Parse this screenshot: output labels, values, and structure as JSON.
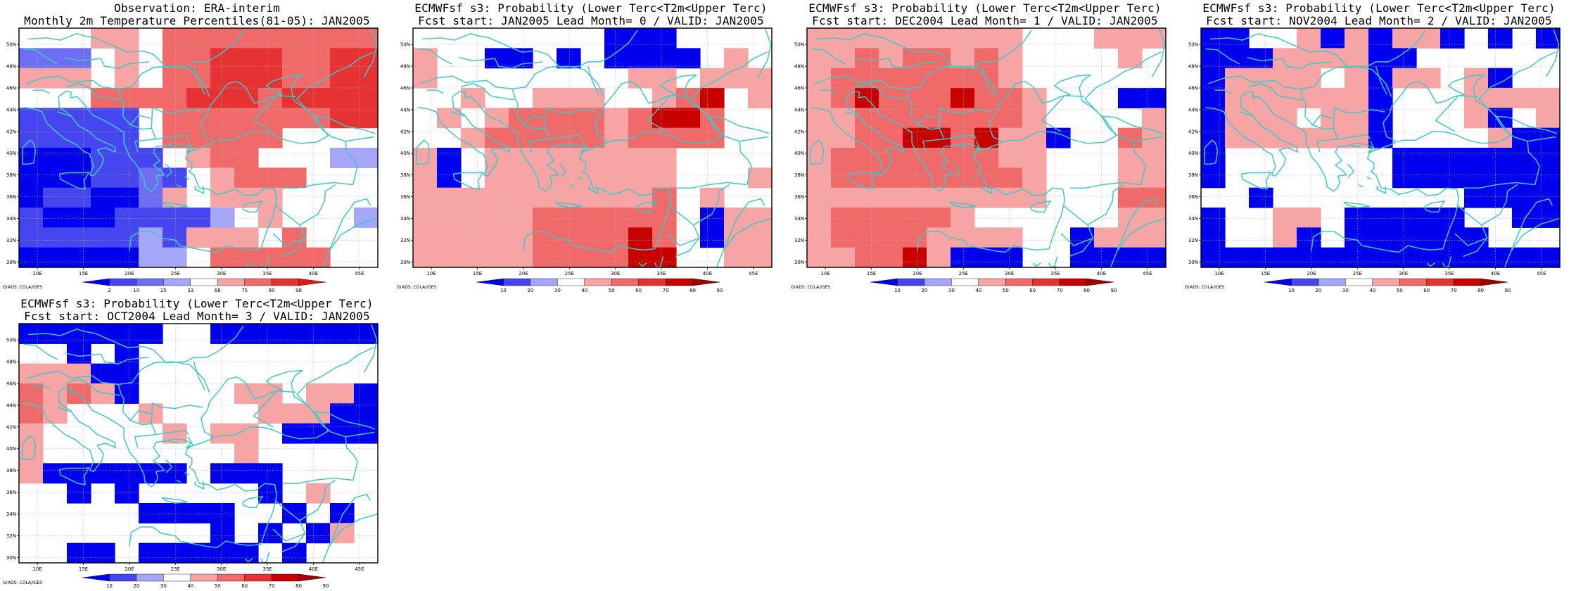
{
  "panels": [
    {
      "id": "obs",
      "title1": "Observation: ERA-interim",
      "title2": "Monthly 2m Temperature Percentiles(81-05): JAN2005",
      "credit": "GrADS: COLA/IGES",
      "colorbar": {
        "labels": [
          "2",
          "10",
          "25",
          "33",
          "66",
          "75",
          "90",
          "98"
        ],
        "colors": [
          "#0000ee",
          "#4646f0",
          "#6e6ef2",
          "#a6a6f8",
          "#ffffff",
          "#f7a4a4",
          "#f06a6a",
          "#e63232",
          "#e61414"
        ]
      },
      "grid": [
        "...WW.RRRRRRRRR",
        "LLL.W.RRSSSRRSS",
        "WWW.W.RRSSSRRSS",
        "...RRRRSSSRSSSS",
        "MMMMM.RRRRRRRSS",
        "MMMMM.RRRRR....",
        "BBBMMM.WRR...NN",
        "BBBMMLM.WRRR...",
        "BMMBBLW.WWW....",
        "MBBBMMMMN.W...N",
        "MMMMMNMWWW.R...",
        "BBBBBNN.RRRRR.."
      ]
    },
    {
      "id": "lead0",
      "title1": "ECMWFsf s3: Probability (Lower Terc<T2m<Upper Terc)",
      "title2": "Fcst start: JAN2005  Lead Month= 0 / VALID: JAN2005",
      "credit": "GrADS: COLA/IGES",
      "colorbar": {
        "labels": [
          "10",
          "20",
          "30",
          "40",
          "50",
          "60",
          "70",
          "80",
          "90"
        ],
        "colors": [
          "#0000ee",
          "#4646f0",
          "#a6a6f8",
          "#ffffff",
          "#f7a4a4",
          "#f06a6a",
          "#e63232",
          "#c80000",
          "#a00000"
        ]
      },
      "grid": [
        "........BBB....",
        "P..BB.B.BBBB.P.",
        "P........PP.PPP",
        "..P..PPP..PRX.P",
        ".P.PRRRRPRXXR..",
        "..PRRRRRPRRRR..",
        "PB.PPPPPPPP....",
        "PB.PPPPPPPP...P",
        "PPPPPPPPPPR.P..",
        "PPPPPRRRRRR.BPP",
        "PPPPPRRRRXR.BPP",
        "PPPPPRRRRXX..PP"
      ]
    },
    {
      "id": "lead1",
      "title1": "ECMWFsf s3: Probability (Lower Terc<T2m<Upper Terc)",
      "title2": "Fcst start: DEC2004  Lead Month= 1 / VALID: JAN2005",
      "credit": "GrADS: COLA/IGES",
      "colorbar": {
        "labels": [
          "10",
          "20",
          "30",
          "40",
          "50",
          "60",
          "70",
          "80",
          "90"
        ],
        "colors": [
          "#0000ee",
          "#4646f0",
          "#a6a6f8",
          "#ffffff",
          "#f7a4a4",
          "#f06a6a",
          "#e63232",
          "#c80000",
          "#a00000"
        ]
      },
      "grid": [
        "PPPPPPPPP...PPP",
        "PPRPRRPRP....P.",
        "PRRRRRRRP......",
        "PRXRRRXRRP...BB",
        "PPRRRRRRRP....P",
        "PPRRXXRXPPB..RP",
        "PRRRRRRRPP...PP",
        "PRRRRRRRRP...PP",
        "PPPPPPPPPP...RR",
        "PRRRRRP......PP",
        "PRRRRPPPP..BPPP",
        "PPRRXPBBB..BBBB"
      ]
    },
    {
      "id": "lead2",
      "title1": "ECMWFsf s3: Probability (Lower Terc<T2m<Upper Terc)",
      "title2": "Fcst start: NOV2004  Lead Month= 2 / VALID: JAN2005",
      "credit": "GrADS: COLA/IGES",
      "colorbar": {
        "labels": [
          "10",
          "20",
          "30",
          "40",
          "50",
          "60",
          "70",
          "80",
          "90"
        ],
        "colors": [
          "#0000ee",
          "#4646f0",
          "#a6a6f8",
          "#ffffff",
          "#f7a4a4",
          "#f06a6a",
          "#e63232",
          "#c80000",
          "#a00000"
        ]
      },
      "grid": [
        "BB..PBPBPPB.B.B",
        "BBBPPPPBB......",
        "BPPPP.PBPP.PB..",
        "BPPPPPPB...PPPP",
        "BPPP.PPB...PB.P",
        "BPPPPPPB....PBB",
        "B.......BBBBBBB",
        "B.......BBBBBBB",
        "..B........BBBB",
        "B..PP.BBBBB..BB",
        "B..PB.BBBBBB...",
        "BBBBBBBBBBBBBBB"
      ]
    },
    {
      "id": "lead3",
      "title1": "ECMWFsf s3: Probability (Lower Terc<T2m<Upper Terc)",
      "title2": "Fcst start: OCT2004  Lead Month= 3 / VALID: JAN2005",
      "credit": "GrADS: COLA/IGES",
      "colorbar": {
        "labels": [
          "10",
          "20",
          "30",
          "40",
          "50",
          "60",
          "70",
          "80",
          "90"
        ],
        "colors": [
          "#0000ee",
          "#4646f0",
          "#a6a6f8",
          "#ffffff",
          "#f7a4a4",
          "#f06a6a",
          "#e63232",
          "#c80000",
          "#a00000"
        ]
      },
      "grid": [
        "BBBBBB..BBBBBBB",
        "..B.B..........",
        "PPPBB..........",
        "RPRPB....PP.PPB",
        "RP...P....PPPBB",
        "P.....P.PP.BBBB",
        "P........P.....",
        "PBBBBBB.BBB....",
        "..B.B.....B.P..",
        ".....BBBB..B.B.",
        "........B.B.BP.",
        "..BB.BBBBB.B..."
      ]
    }
  ],
  "axes": {
    "x_labels": [
      "10E",
      "15E",
      "20E",
      "25E",
      "30E",
      "35E",
      "40E",
      "45E"
    ],
    "y_labels": [
      "30N",
      "32N",
      "34N",
      "36N",
      "38N",
      "40N",
      "42N",
      "44N",
      "46N",
      "48N",
      "50N"
    ]
  },
  "shade_key": {
    "B": "#0000ee",
    "L": "#6e6ef2",
    "M": "#4646f0",
    "N": "#a6a6f8",
    "P": "#f7a4a4",
    "W": "#f7a4a4",
    "R": "#f06a6a",
    "S": "#e63232",
    "X": "#c80000",
    ".": "#ffffff"
  },
  "coast_color": "#40c8c8"
}
